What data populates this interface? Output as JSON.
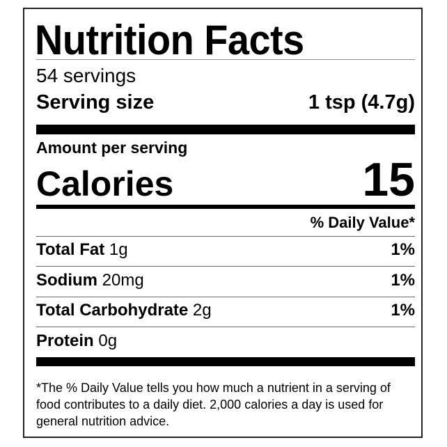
{
  "title": "Nutrition Facts",
  "servings": "54 servings",
  "serving_size": {
    "label": "Serving size",
    "value": "1 tsp (4.7g)"
  },
  "amount_per_serving": "Amount per serving",
  "calories": {
    "label": "Calories",
    "value": "15"
  },
  "daily_value_header": "% Daily Value*",
  "nutrients": [
    {
      "name": "Total Fat",
      "amount": "1g",
      "dv": "1%"
    },
    {
      "name": "Sodium",
      "amount": "20mg",
      "dv": "1%"
    },
    {
      "name": "Total Carbohydrate",
      "amount": "2g",
      "dv": "1%"
    },
    {
      "name": "Protein",
      "amount": "0g",
      "dv": ""
    }
  ],
  "footnote": "*The % Daily Value tells you how much a nutrient in a serving of food contributes to a daily diet. 2,000 calories a day is used for general nutrition advice."
}
